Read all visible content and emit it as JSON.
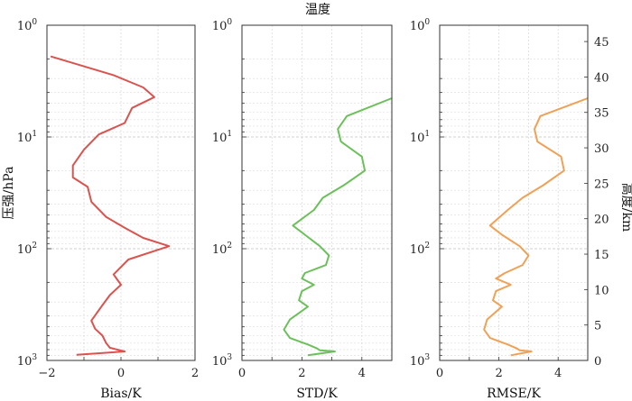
{
  "chart_title": "温度",
  "left_axis": {
    "label": "压强/hPa",
    "ticks": [
      {
        "base": "10",
        "exp": "0",
        "value": 1
      },
      {
        "base": "10",
        "exp": "1",
        "value": 10
      },
      {
        "base": "10",
        "exp": "2",
        "value": 100
      },
      {
        "base": "10",
        "exp": "3",
        "value": 1000
      }
    ]
  },
  "right_axis": {
    "label": "高度/km",
    "ticks": [
      "0",
      "5",
      "10",
      "15",
      "20",
      "25",
      "30",
      "35",
      "40",
      "45"
    ]
  },
  "chart_data": [
    {
      "type": "line",
      "xlabel": "Bias/K",
      "ylabel": "压强/hPa",
      "xlim": [
        -2,
        2
      ],
      "xticks": [
        "−2",
        "0",
        "2"
      ],
      "ylim": [
        1,
        1000
      ],
      "yscale": "log-reversed",
      "grid": true,
      "color": "#d9534f",
      "series": [
        {
          "x": [
            -1.9,
            -0.2,
            0.6,
            0.9,
            0.3,
            0.1,
            -0.6,
            -1.0,
            -1.3,
            -1.3,
            -0.9,
            -0.8,
            -0.4,
            0.1,
            0.6,
            1.3,
            0.2,
            -0.2,
            0.0,
            -0.3,
            -0.5,
            -0.8,
            -0.7,
            -0.5,
            -0.4,
            -0.3,
            0.1,
            -1.2
          ],
          "y": [
            1.9,
            2.8,
            3.6,
            4.4,
            5.5,
            7.5,
            9.5,
            13,
            18,
            23,
            28,
            38,
            52,
            65,
            80,
            95,
            125,
            170,
            210,
            260,
            320,
            440,
            520,
            600,
            700,
            770,
            830,
            890
          ]
        }
      ]
    },
    {
      "type": "line",
      "xlabel": "STD/K",
      "xlim": [
        0,
        5
      ],
      "xticks": [
        "0",
        "2",
        "4"
      ],
      "ylim": [
        1,
        1000
      ],
      "yscale": "log-reversed",
      "grid": true,
      "color": "#6cc05b",
      "series": [
        {
          "x": [
            5.0,
            3.5,
            3.2,
            3.3,
            4.0,
            4.1,
            3.4,
            2.7,
            2.4,
            1.7,
            2.1,
            2.6,
            2.9,
            2.8,
            2.1,
            2.0,
            2.4,
            2.0,
            1.9,
            2.2,
            1.6,
            1.4,
            1.6,
            2.2,
            2.5,
            2.6,
            3.1,
            2.2
          ],
          "y": [
            4.5,
            6.5,
            8.5,
            11,
            15,
            20,
            27,
            35,
            45,
            62,
            75,
            95,
            115,
            140,
            165,
            185,
            210,
            240,
            290,
            330,
            430,
            530,
            630,
            720,
            780,
            810,
            830,
            900
          ]
        }
      ]
    },
    {
      "type": "line",
      "xlabel": "RMSE/K",
      "xlim": [
        0,
        5
      ],
      "xticks": [
        "0",
        "2",
        "4"
      ],
      "ylim": [
        1,
        1000
      ],
      "yscale": "log-reversed",
      "grid": true,
      "color": "#f0a155",
      "series": [
        {
          "x": [
            5.0,
            3.4,
            3.2,
            3.3,
            4.1,
            4.2,
            3.5,
            2.8,
            2.3,
            1.7,
            2.1,
            2.7,
            3.0,
            2.8,
            2.2,
            1.9,
            2.4,
            1.9,
            1.8,
            2.1,
            1.6,
            1.5,
            1.7,
            2.3,
            2.6,
            2.7,
            3.1,
            2.4
          ],
          "y": [
            4.5,
            6.5,
            8.5,
            11,
            15,
            20,
            27,
            35,
            45,
            62,
            75,
            95,
            115,
            140,
            165,
            185,
            210,
            240,
            290,
            330,
            430,
            530,
            630,
            720,
            780,
            810,
            830,
            900
          ]
        }
      ]
    }
  ]
}
